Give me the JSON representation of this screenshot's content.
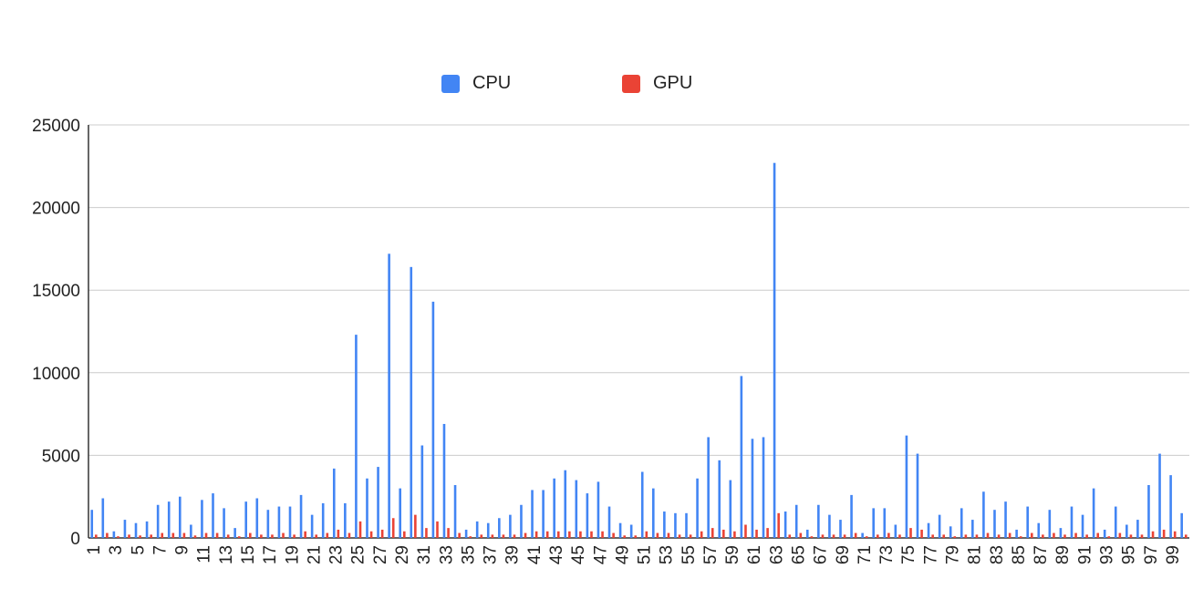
{
  "chart_data": {
    "type": "bar",
    "title": "",
    "xlabel": "",
    "ylabel": "",
    "ylim": [
      0,
      25000
    ],
    "yticks": [
      0,
      5000,
      10000,
      15000,
      20000,
      25000
    ],
    "grid": true,
    "legend_position": "top-center",
    "colors": {
      "CPU": "#4285f4",
      "GPU": "#ea4335"
    },
    "categories": [
      1,
      2,
      3,
      4,
      5,
      6,
      7,
      8,
      9,
      10,
      11,
      12,
      13,
      14,
      15,
      16,
      17,
      18,
      19,
      20,
      21,
      22,
      23,
      24,
      25,
      26,
      27,
      28,
      29,
      30,
      31,
      32,
      33,
      34,
      35,
      36,
      37,
      38,
      39,
      40,
      41,
      42,
      43,
      44,
      45,
      46,
      47,
      48,
      49,
      50,
      51,
      52,
      53,
      54,
      55,
      56,
      57,
      58,
      59,
      60,
      61,
      62,
      63,
      64,
      65,
      66,
      67,
      68,
      69,
      70,
      71,
      72,
      73,
      74,
      75,
      76,
      77,
      78,
      79,
      80,
      81,
      82,
      83,
      84,
      85,
      86,
      87,
      88,
      89,
      90,
      91,
      92,
      93,
      94,
      95,
      96,
      97,
      98,
      99,
      100
    ],
    "x_tick_labels": [
      "1",
      "3",
      "5",
      "7",
      "9",
      "11",
      "13",
      "15",
      "17",
      "19",
      "21",
      "23",
      "25",
      "27",
      "29",
      "31",
      "33",
      "35",
      "37",
      "39",
      "41",
      "43",
      "45",
      "47",
      "49",
      "51",
      "53",
      "55",
      "57",
      "59",
      "61",
      "63",
      "65",
      "67",
      "69",
      "71",
      "73",
      "75",
      "77",
      "79",
      "81",
      "83",
      "85",
      "87",
      "89",
      "91",
      "93",
      "95",
      "97",
      "99"
    ],
    "series": [
      {
        "name": "CPU",
        "values": [
          1700,
          2400,
          400,
          1100,
          900,
          1000,
          2000,
          2200,
          2500,
          800,
          2300,
          2700,
          1800,
          600,
          2200,
          2400,
          1700,
          1900,
          1900,
          2600,
          1400,
          2100,
          4200,
          2100,
          12300,
          3600,
          4300,
          17200,
          3000,
          16400,
          5600,
          14300,
          6900,
          3200,
          500,
          1000,
          900,
          1200,
          1400,
          2000,
          2900,
          2900,
          3600,
          4100,
          3500,
          2700,
          3400,
          1900,
          900,
          800,
          4000,
          3000,
          1600,
          1500,
          1500,
          3600,
          6100,
          4700,
          3500,
          9800,
          6000,
          6100,
          22700,
          1600,
          2000,
          500,
          2000,
          1400,
          1100,
          2600,
          300,
          1800,
          1800,
          800,
          6200,
          5100,
          900,
          1400,
          700,
          1800,
          1100,
          2800,
          1700,
          2200,
          500,
          1900,
          900,
          1700,
          600,
          1900,
          1400,
          3000,
          500,
          1900,
          800,
          1100,
          3200,
          5100,
          3800,
          1500
        ],
        "values_note": ""
      },
      {
        "name": "GPU",
        "values": [
          200,
          300,
          100,
          200,
          150,
          200,
          300,
          300,
          300,
          150,
          300,
          300,
          200,
          100,
          300,
          200,
          200,
          300,
          200,
          400,
          200,
          300,
          500,
          300,
          1000,
          400,
          500,
          1200,
          400,
          1400,
          600,
          1000,
          600,
          300,
          100,
          200,
          200,
          200,
          200,
          300,
          400,
          400,
          400,
          400,
          400,
          400,
          400,
          300,
          150,
          150,
          400,
          300,
          300,
          200,
          200,
          400,
          600,
          500,
          400,
          800,
          500,
          600,
          1500,
          200,
          300,
          100,
          200,
          200,
          200,
          300,
          100,
          200,
          300,
          200,
          600,
          500,
          200,
          200,
          100,
          200,
          200,
          300,
          200,
          300,
          100,
          300,
          200,
          300,
          200,
          300,
          200,
          300,
          100,
          300,
          200,
          200,
          400,
          500,
          400,
          200
        ]
      }
    ]
  }
}
